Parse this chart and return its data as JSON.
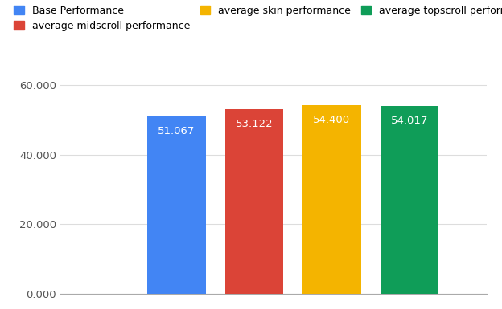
{
  "categories": [
    "Base Performance",
    "average midscroll performance",
    "average skin performance",
    "average topscroll performance"
  ],
  "values": [
    51.067,
    53.122,
    54.4,
    54.017
  ],
  "bar_colors": [
    "#4285F4",
    "#DB4437",
    "#F4B400",
    "#0F9D58"
  ],
  "bar_labels": [
    "51.067",
    "53.122",
    "54.400",
    "54.017"
  ],
  "label_colors": [
    "#ffffff",
    "#ffffff",
    "#ffffff",
    "#ffffff"
  ],
  "ylim": [
    0,
    65000
  ],
  "yticks": [
    0,
    20000,
    40000,
    60000
  ],
  "ytick_labels": [
    "0.000",
    "20.000",
    "40.000",
    "60.000"
  ],
  "background_color": "#ffffff",
  "grid_color": "#dddddd",
  "legend_labels": [
    "Base Performance",
    "average midscroll performance",
    "average skin performance",
    "average topscroll performance"
  ],
  "legend_colors": [
    "#4285F4",
    "#DB4437",
    "#F4B400",
    "#0F9D58"
  ],
  "bar_width": 0.75,
  "value_scale": 1000
}
